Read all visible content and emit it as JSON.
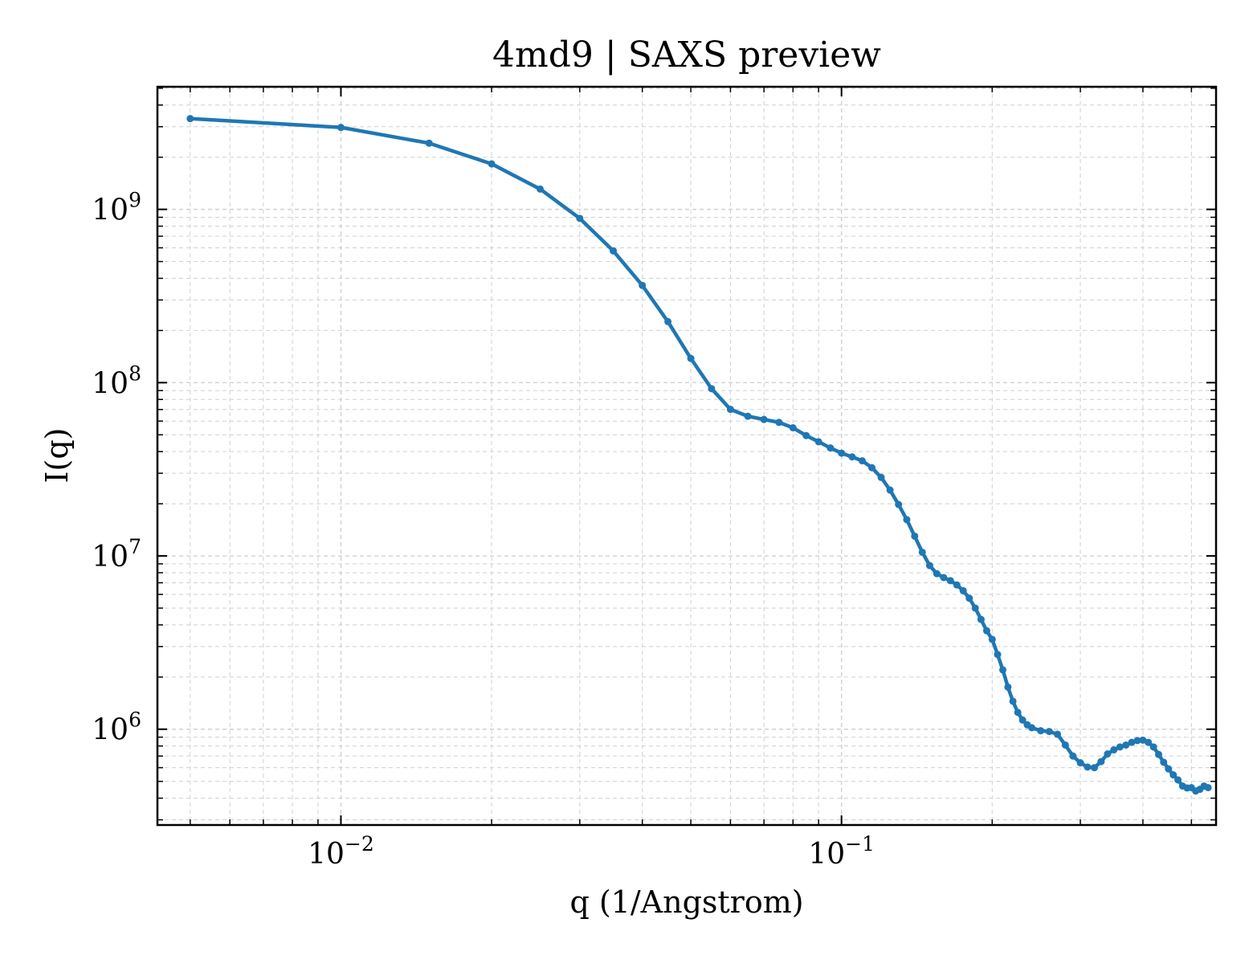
{
  "chart_data": {
    "type": "line",
    "title": "4md9 | SAXS preview",
    "xlabel": "q (1/Angstrom)",
    "ylabel": "I(q)",
    "xscale": "log",
    "yscale": "log",
    "xlim": [
      0.0043,
      0.56
    ],
    "ylim": [
      280000,
      5100000000
    ],
    "grid": true,
    "legend": "none",
    "x_ticks": [
      {
        "base": "10",
        "exp": "−2",
        "value": 0.01
      },
      {
        "base": "10",
        "exp": "−1",
        "value": 0.1
      }
    ],
    "y_ticks": [
      {
        "base": "10",
        "exp": "6",
        "value": 1000000
      },
      {
        "base": "10",
        "exp": "7",
        "value": 10000000
      },
      {
        "base": "10",
        "exp": "8",
        "value": 100000000
      },
      {
        "base": "10",
        "exp": "9",
        "value": 1000000000
      }
    ],
    "series": [
      {
        "color": "#1f77b4",
        "marker": "circle",
        "points": [
          [
            0.005,
            3340000000
          ],
          [
            0.01,
            2970000000
          ],
          [
            0.015,
            2410000000
          ],
          [
            0.02,
            1830000000
          ],
          [
            0.025,
            1310000000
          ],
          [
            0.03,
            887000000
          ],
          [
            0.035,
            576000000
          ],
          [
            0.04,
            364000000
          ],
          [
            0.045,
            225000000
          ],
          [
            0.05,
            138000000
          ],
          [
            0.055,
            92300000
          ],
          [
            0.06,
            70100000
          ],
          [
            0.065,
            64000000
          ],
          [
            0.07,
            61300000
          ],
          [
            0.075,
            59000000
          ],
          [
            0.08,
            54900000
          ],
          [
            0.085,
            49500000
          ],
          [
            0.09,
            45600000
          ],
          [
            0.095,
            42000000
          ],
          [
            0.1,
            39200000
          ],
          [
            0.105,
            37300000
          ],
          [
            0.11,
            35400000
          ],
          [
            0.115,
            32300000
          ],
          [
            0.12,
            28400000
          ],
          [
            0.125,
            24000000
          ],
          [
            0.13,
            19800000
          ],
          [
            0.135,
            16200000
          ],
          [
            0.14,
            13000000
          ],
          [
            0.145,
            10500000
          ],
          [
            0.15,
            8800000
          ],
          [
            0.155,
            7900000
          ],
          [
            0.16,
            7500000
          ],
          [
            0.165,
            7200000
          ],
          [
            0.17,
            6800000
          ],
          [
            0.175,
            6300000
          ],
          [
            0.18,
            5700000
          ],
          [
            0.185,
            5000000
          ],
          [
            0.19,
            4300000
          ],
          [
            0.195,
            3700000
          ],
          [
            0.2,
            3300000
          ],
          [
            0.205,
            2700000
          ],
          [
            0.21,
            2200000
          ],
          [
            0.215,
            1750000
          ],
          [
            0.22,
            1450000
          ],
          [
            0.225,
            1250000
          ],
          [
            0.23,
            1130000
          ],
          [
            0.235,
            1060000
          ],
          [
            0.24,
            1020000
          ],
          [
            0.25,
            980000
          ],
          [
            0.26,
            970000
          ],
          [
            0.27,
            935000
          ],
          [
            0.28,
            810000
          ],
          [
            0.29,
            700000
          ],
          [
            0.3,
            640000
          ],
          [
            0.31,
            605000
          ],
          [
            0.32,
            600000
          ],
          [
            0.33,
            650000
          ],
          [
            0.34,
            720000
          ],
          [
            0.35,
            760000
          ],
          [
            0.36,
            790000
          ],
          [
            0.37,
            810000
          ],
          [
            0.38,
            840000
          ],
          [
            0.39,
            860000
          ],
          [
            0.4,
            865000
          ],
          [
            0.41,
            840000
          ],
          [
            0.42,
            790000
          ],
          [
            0.43,
            715000
          ],
          [
            0.44,
            645000
          ],
          [
            0.45,
            590000
          ],
          [
            0.46,
            545000
          ],
          [
            0.47,
            510000
          ],
          [
            0.48,
            470000
          ],
          [
            0.49,
            458000
          ],
          [
            0.5,
            460000
          ],
          [
            0.51,
            440000
          ],
          [
            0.52,
            450000
          ],
          [
            0.53,
            470000
          ],
          [
            0.54,
            460000
          ]
        ]
      }
    ]
  }
}
